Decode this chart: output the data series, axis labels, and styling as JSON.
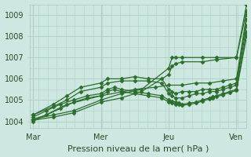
{
  "bg_color": "#cce8e0",
  "plot_bg_color": "#cce8e0",
  "grid_color": "#b0d0c8",
  "line_color": "#2d6e2d",
  "xlabel": "Pression niveau de la mer( hPa )",
  "xlabel_fontsize": 8,
  "yticks": [
    1004,
    1005,
    1006,
    1007,
    1008,
    1009
  ],
  "xtick_labels": [
    "Mar",
    "Mer",
    "Jeu",
    "Ven"
  ],
  "xtick_positions": [
    0,
    1,
    2,
    3
  ],
  "xlim": [
    -0.05,
    3.15
  ],
  "ylim": [
    1003.7,
    1009.5
  ],
  "figsize": [
    3.2,
    2.0
  ],
  "dpi": 100,
  "series": [
    {
      "x": [
        0.0,
        0.3,
        0.6,
        1.0,
        1.3,
        1.6,
        2.0,
        2.05,
        2.1,
        2.2,
        2.5,
        2.7,
        3.0,
        3.15
      ],
      "y": [
        1004.1,
        1004.3,
        1004.5,
        1005.0,
        1005.3,
        1005.5,
        1006.5,
        1007.0,
        1007.0,
        1007.0,
        1007.0,
        1007.0,
        1007.0,
        1009.5
      ]
    },
    {
      "x": [
        0.0,
        0.3,
        0.6,
        1.0,
        1.3,
        1.6,
        2.0,
        2.05,
        2.1,
        2.2,
        2.5,
        2.7,
        3.0,
        3.15
      ],
      "y": [
        1004.05,
        1004.2,
        1004.4,
        1004.9,
        1005.1,
        1005.4,
        1006.2,
        1006.6,
        1006.7,
        1006.8,
        1006.8,
        1006.9,
        1007.0,
        1009.2
      ]
    },
    {
      "x": [
        0.0,
        0.5,
        1.0,
        1.5,
        1.8,
        2.0,
        2.2,
        2.4,
        2.6,
        2.8,
        3.0,
        3.15
      ],
      "y": [
        1004.0,
        1004.8,
        1005.2,
        1005.5,
        1005.6,
        1005.7,
        1005.7,
        1005.8,
        1005.8,
        1005.9,
        1006.0,
        1009.0
      ]
    },
    {
      "x": [
        0.0,
        0.3,
        0.5,
        0.7,
        1.0,
        1.1,
        1.3,
        1.5,
        1.7,
        1.9,
        2.0,
        2.05,
        2.1,
        2.2,
        2.3,
        2.4,
        2.5,
        2.6,
        2.7,
        2.8,
        2.9,
        3.0,
        3.15
      ],
      "y": [
        1004.3,
        1004.8,
        1005.2,
        1005.6,
        1005.8,
        1006.0,
        1006.0,
        1006.1,
        1006.0,
        1006.0,
        1005.5,
        1005.4,
        1005.3,
        1005.4,
        1005.4,
        1005.4,
        1005.5,
        1005.5,
        1005.5,
        1005.6,
        1005.7,
        1005.8,
        1008.8
      ]
    },
    {
      "x": [
        0.0,
        0.3,
        0.5,
        0.7,
        1.0,
        1.1,
        1.3,
        1.5,
        1.7,
        1.9,
        2.0,
        2.05,
        2.1,
        2.2,
        2.3,
        2.4,
        2.5,
        2.6,
        2.7,
        2.8,
        2.9,
        3.0,
        3.15
      ],
      "y": [
        1004.3,
        1004.7,
        1005.0,
        1005.4,
        1005.6,
        1005.8,
        1005.9,
        1005.9,
        1005.9,
        1005.8,
        1005.3,
        1005.2,
        1005.1,
        1005.1,
        1005.2,
        1005.3,
        1005.3,
        1005.4,
        1005.4,
        1005.5,
        1005.6,
        1005.7,
        1008.5
      ]
    },
    {
      "x": [
        0.0,
        0.2,
        0.4,
        0.6,
        0.8,
        1.0,
        1.1,
        1.2,
        1.3,
        1.5,
        1.7,
        1.9,
        2.0,
        2.05,
        2.1,
        2.15,
        2.2,
        2.3,
        2.4,
        2.5,
        2.6,
        2.65,
        2.7,
        2.8,
        2.9,
        3.0,
        3.15
      ],
      "y": [
        1004.2,
        1004.5,
        1004.8,
        1005.0,
        1005.2,
        1005.3,
        1005.5,
        1005.6,
        1005.5,
        1005.4,
        1005.3,
        1005.2,
        1005.0,
        1004.95,
        1004.9,
        1004.85,
        1004.8,
        1004.85,
        1004.9,
        1005.0,
        1005.1,
        1005.15,
        1005.2,
        1005.3,
        1005.4,
        1005.5,
        1008.2
      ]
    },
    {
      "x": [
        0.0,
        0.2,
        0.4,
        0.6,
        0.8,
        1.0,
        1.1,
        1.2,
        1.3,
        1.5,
        1.7,
        1.9,
        2.0,
        2.05,
        2.1,
        2.15,
        2.2,
        2.3,
        2.4,
        2.5,
        2.6,
        2.65,
        2.7,
        2.8,
        2.9,
        3.0,
        3.15
      ],
      "y": [
        1004.1,
        1004.3,
        1004.6,
        1004.9,
        1005.1,
        1005.2,
        1005.4,
        1005.5,
        1005.4,
        1005.3,
        1005.2,
        1005.1,
        1004.9,
        1004.85,
        1004.8,
        1004.78,
        1004.75,
        1004.8,
        1004.85,
        1004.95,
        1005.05,
        1005.1,
        1005.15,
        1005.25,
        1005.35,
        1005.45,
        1008.0
      ]
    }
  ]
}
